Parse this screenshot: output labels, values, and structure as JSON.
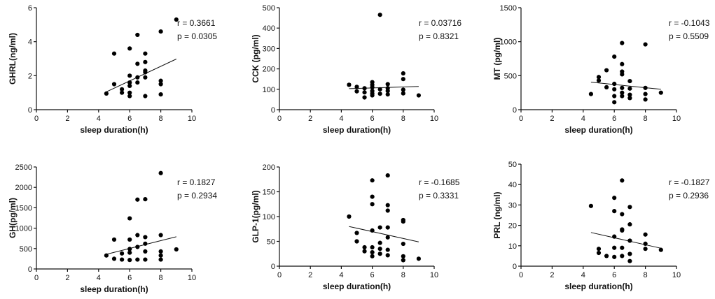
{
  "chart_data": [
    {
      "type": "scatter",
      "xlabel": "sleep duration(h)",
      "ylabel": "GHRL(ng/ml)",
      "xlim": [
        0,
        10
      ],
      "ylim": [
        0,
        6
      ],
      "xticks": [
        "0",
        "2",
        "4",
        "6",
        "8",
        "10"
      ],
      "yticks": [
        "0",
        "2",
        "4",
        "6"
      ],
      "r_label": "r = 0.3661",
      "p_label": "p = 0.0305",
      "trend": {
        "x": [
          4.5,
          9.0
        ],
        "y": [
          1.05,
          2.98
        ]
      },
      "points": [
        {
          "x": 4.5,
          "y": 0.95
        },
        {
          "x": 5.0,
          "y": 1.5
        },
        {
          "x": 5.0,
          "y": 3.3
        },
        {
          "x": 5.5,
          "y": 1.0
        },
        {
          "x": 5.5,
          "y": 1.2
        },
        {
          "x": 6.0,
          "y": 0.8
        },
        {
          "x": 6.0,
          "y": 1.0
        },
        {
          "x": 6.0,
          "y": 1.4
        },
        {
          "x": 6.0,
          "y": 1.6
        },
        {
          "x": 6.0,
          "y": 2.0
        },
        {
          "x": 6.0,
          "y": 3.6
        },
        {
          "x": 6.5,
          "y": 1.6
        },
        {
          "x": 6.5,
          "y": 1.9
        },
        {
          "x": 6.5,
          "y": 2.7
        },
        {
          "x": 6.5,
          "y": 4.4
        },
        {
          "x": 7.0,
          "y": 0.8
        },
        {
          "x": 7.0,
          "y": 1.9
        },
        {
          "x": 7.0,
          "y": 2.2
        },
        {
          "x": 7.0,
          "y": 2.3
        },
        {
          "x": 7.0,
          "y": 2.8
        },
        {
          "x": 7.0,
          "y": 3.3
        },
        {
          "x": 8.0,
          "y": 0.9
        },
        {
          "x": 8.0,
          "y": 1.5
        },
        {
          "x": 8.0,
          "y": 1.7
        },
        {
          "x": 8.0,
          "y": 4.6
        },
        {
          "x": 9.0,
          "y": 5.3
        }
      ]
    },
    {
      "type": "scatter",
      "xlabel": "sleep duration(h)",
      "ylabel": "CCK (pg/ml)",
      "xlim": [
        0,
        10
      ],
      "ylim": [
        0,
        500
      ],
      "xticks": [
        "0",
        "2",
        "4",
        "6",
        "8",
        "10"
      ],
      "yticks": [
        "0",
        "100",
        "200",
        "300",
        "400",
        "500"
      ],
      "r_label": "r = 0.03716",
      "p_label": "p = 0.8321",
      "trend": {
        "x": [
          4.5,
          9.0
        ],
        "y": [
          103,
          114
        ]
      },
      "points": [
        {
          "x": 4.5,
          "y": 122
        },
        {
          "x": 5.0,
          "y": 90
        },
        {
          "x": 5.0,
          "y": 112
        },
        {
          "x": 5.5,
          "y": 60
        },
        {
          "x": 5.5,
          "y": 85
        },
        {
          "x": 5.5,
          "y": 105
        },
        {
          "x": 6.0,
          "y": 70
        },
        {
          "x": 6.0,
          "y": 80
        },
        {
          "x": 6.0,
          "y": 92
        },
        {
          "x": 6.0,
          "y": 110
        },
        {
          "x": 6.0,
          "y": 122
        },
        {
          "x": 6.0,
          "y": 135
        },
        {
          "x": 6.5,
          "y": 78
        },
        {
          "x": 6.5,
          "y": 100
        },
        {
          "x": 6.5,
          "y": 465
        },
        {
          "x": 7.0,
          "y": 75
        },
        {
          "x": 7.0,
          "y": 92
        },
        {
          "x": 7.0,
          "y": 105
        },
        {
          "x": 7.0,
          "y": 125
        },
        {
          "x": 8.0,
          "y": 80
        },
        {
          "x": 8.0,
          "y": 98
        },
        {
          "x": 8.0,
          "y": 150
        },
        {
          "x": 8.0,
          "y": 178
        },
        {
          "x": 9.0,
          "y": 70
        }
      ]
    },
    {
      "type": "scatter",
      "xlabel": "sleep duration(h)",
      "ylabel": "MT (pg/ml)",
      "xlim": [
        0,
        10
      ],
      "ylim": [
        0,
        1500
      ],
      "xticks": [
        "0",
        "2",
        "4",
        "6",
        "8",
        "10"
      ],
      "yticks": [
        "0",
        "500",
        "1000",
        "1500"
      ],
      "r_label": "r = -0.1043",
      "p_label": "p = 0.5509",
      "trend": {
        "x": [
          4.5,
          9.0
        ],
        "y": [
          405,
          300
        ]
      },
      "points": [
        {
          "x": 4.5,
          "y": 230
        },
        {
          "x": 5.0,
          "y": 430
        },
        {
          "x": 5.0,
          "y": 480
        },
        {
          "x": 5.5,
          "y": 330
        },
        {
          "x": 5.5,
          "y": 580
        },
        {
          "x": 6.0,
          "y": 110
        },
        {
          "x": 6.0,
          "y": 200
        },
        {
          "x": 6.0,
          "y": 300
        },
        {
          "x": 6.0,
          "y": 380
        },
        {
          "x": 6.0,
          "y": 780
        },
        {
          "x": 6.5,
          "y": 200
        },
        {
          "x": 6.5,
          "y": 250
        },
        {
          "x": 6.5,
          "y": 320
        },
        {
          "x": 6.5,
          "y": 520
        },
        {
          "x": 6.5,
          "y": 560
        },
        {
          "x": 6.5,
          "y": 670
        },
        {
          "x": 6.5,
          "y": 980
        },
        {
          "x": 7.0,
          "y": 170
        },
        {
          "x": 7.0,
          "y": 220
        },
        {
          "x": 7.0,
          "y": 310
        },
        {
          "x": 7.0,
          "y": 420
        },
        {
          "x": 8.0,
          "y": 150
        },
        {
          "x": 8.0,
          "y": 230
        },
        {
          "x": 8.0,
          "y": 320
        },
        {
          "x": 8.0,
          "y": 960
        },
        {
          "x": 9.0,
          "y": 250
        }
      ]
    },
    {
      "type": "scatter",
      "xlabel": "sleep duration(h)",
      "ylabel": "GH(pg/ml)",
      "xlim": [
        0,
        10
      ],
      "ylim": [
        0,
        2500
      ],
      "xticks": [
        "0",
        "2",
        "4",
        "6",
        "8",
        "10"
      ],
      "yticks": [
        "0",
        "500",
        "1000",
        "1500",
        "2000",
        "2500"
      ],
      "r_label": "r = 0.1827",
      "p_label": "p = 0.2934",
      "trend": {
        "x": [
          4.5,
          9.0
        ],
        "y": [
          360,
          790
        ]
      },
      "points": [
        {
          "x": 4.5,
          "y": 330
        },
        {
          "x": 5.0,
          "y": 250
        },
        {
          "x": 5.0,
          "y": 720
        },
        {
          "x": 5.5,
          "y": 230
        },
        {
          "x": 5.5,
          "y": 380
        },
        {
          "x": 6.0,
          "y": 220
        },
        {
          "x": 6.0,
          "y": 400
        },
        {
          "x": 6.0,
          "y": 490
        },
        {
          "x": 6.0,
          "y": 720
        },
        {
          "x": 6.0,
          "y": 1240
        },
        {
          "x": 6.5,
          "y": 230
        },
        {
          "x": 6.5,
          "y": 540
        },
        {
          "x": 6.5,
          "y": 830
        },
        {
          "x": 6.5,
          "y": 1700
        },
        {
          "x": 7.0,
          "y": 230
        },
        {
          "x": 7.0,
          "y": 430
        },
        {
          "x": 7.0,
          "y": 620
        },
        {
          "x": 7.0,
          "y": 780
        },
        {
          "x": 7.0,
          "y": 1710
        },
        {
          "x": 8.0,
          "y": 230
        },
        {
          "x": 8.0,
          "y": 330
        },
        {
          "x": 8.0,
          "y": 430
        },
        {
          "x": 8.0,
          "y": 830
        },
        {
          "x": 8.0,
          "y": 2350
        },
        {
          "x": 9.0,
          "y": 480
        }
      ]
    },
    {
      "type": "scatter",
      "xlabel": "sleep duration(h)",
      "ylabel": "GLP-1(pg/ml)",
      "xlim": [
        0,
        10
      ],
      "ylim": [
        0,
        200
      ],
      "xticks": [
        "0",
        "2",
        "4",
        "6",
        "8",
        "10"
      ],
      "yticks": [
        "0",
        "50",
        "100",
        "150",
        "200"
      ],
      "r_label": "r = -0.1685",
      "p_label": "p = 0.3331",
      "trend": {
        "x": [
          4.5,
          9.0
        ],
        "y": [
          80,
          49
        ]
      },
      "points": [
        {
          "x": 4.5,
          "y": 100
        },
        {
          "x": 5.0,
          "y": 50
        },
        {
          "x": 5.0,
          "y": 67
        },
        {
          "x": 5.5,
          "y": 30
        },
        {
          "x": 5.5,
          "y": 38
        },
        {
          "x": 6.0,
          "y": 20
        },
        {
          "x": 6.0,
          "y": 28
        },
        {
          "x": 6.0,
          "y": 38
        },
        {
          "x": 6.0,
          "y": 72
        },
        {
          "x": 6.0,
          "y": 125
        },
        {
          "x": 6.0,
          "y": 140
        },
        {
          "x": 6.0,
          "y": 173
        },
        {
          "x": 6.5,
          "y": 25
        },
        {
          "x": 6.5,
          "y": 35
        },
        {
          "x": 6.5,
          "y": 47
        },
        {
          "x": 6.5,
          "y": 78
        },
        {
          "x": 7.0,
          "y": 22
        },
        {
          "x": 7.0,
          "y": 33
        },
        {
          "x": 7.0,
          "y": 58
        },
        {
          "x": 7.0,
          "y": 78
        },
        {
          "x": 7.0,
          "y": 112
        },
        {
          "x": 7.0,
          "y": 123
        },
        {
          "x": 7.0,
          "y": 183
        },
        {
          "x": 8.0,
          "y": 12
        },
        {
          "x": 8.0,
          "y": 20
        },
        {
          "x": 8.0,
          "y": 45
        },
        {
          "x": 8.0,
          "y": 90
        },
        {
          "x": 8.0,
          "y": 93
        },
        {
          "x": 9.0,
          "y": 15
        }
      ]
    },
    {
      "type": "scatter",
      "xlabel": "sleep duration(h)",
      "ylabel": "PRL (ng/ml)",
      "xlim": [
        0,
        10
      ],
      "ylim": [
        0,
        50
      ],
      "xticks": [
        "0",
        "2",
        "4",
        "6",
        "8",
        "10"
      ],
      "yticks": [
        "0",
        "10",
        "20",
        "30",
        "40",
        "50"
      ],
      "r_label": "r = -0.1827",
      "p_label": "p = 0.2936",
      "trend": {
        "x": [
          4.5,
          9.0
        ],
        "y": [
          16.5,
          8.8
        ]
      },
      "points": [
        {
          "x": 4.5,
          "y": 29.5
        },
        {
          "x": 5.0,
          "y": 6.5
        },
        {
          "x": 5.0,
          "y": 8.5
        },
        {
          "x": 5.5,
          "y": 5.0
        },
        {
          "x": 6.0,
          "y": 4.5
        },
        {
          "x": 6.0,
          "y": 9.0
        },
        {
          "x": 6.0,
          "y": 14.5
        },
        {
          "x": 6.0,
          "y": 27.0
        },
        {
          "x": 6.0,
          "y": 33.5
        },
        {
          "x": 6.5,
          "y": 5.0
        },
        {
          "x": 6.5,
          "y": 9.0
        },
        {
          "x": 6.5,
          "y": 17.5
        },
        {
          "x": 6.5,
          "y": 18.0
        },
        {
          "x": 6.5,
          "y": 25.5
        },
        {
          "x": 6.5,
          "y": 42.0
        },
        {
          "x": 7.0,
          "y": 2.5
        },
        {
          "x": 7.0,
          "y": 6.0
        },
        {
          "x": 7.0,
          "y": 12.5
        },
        {
          "x": 7.0,
          "y": 20.5
        },
        {
          "x": 7.0,
          "y": 29.0
        },
        {
          "x": 8.0,
          "y": 8.5
        },
        {
          "x": 8.0,
          "y": 11.0
        },
        {
          "x": 8.0,
          "y": 15.5
        },
        {
          "x": 9.0,
          "y": 8.0
        }
      ]
    }
  ]
}
